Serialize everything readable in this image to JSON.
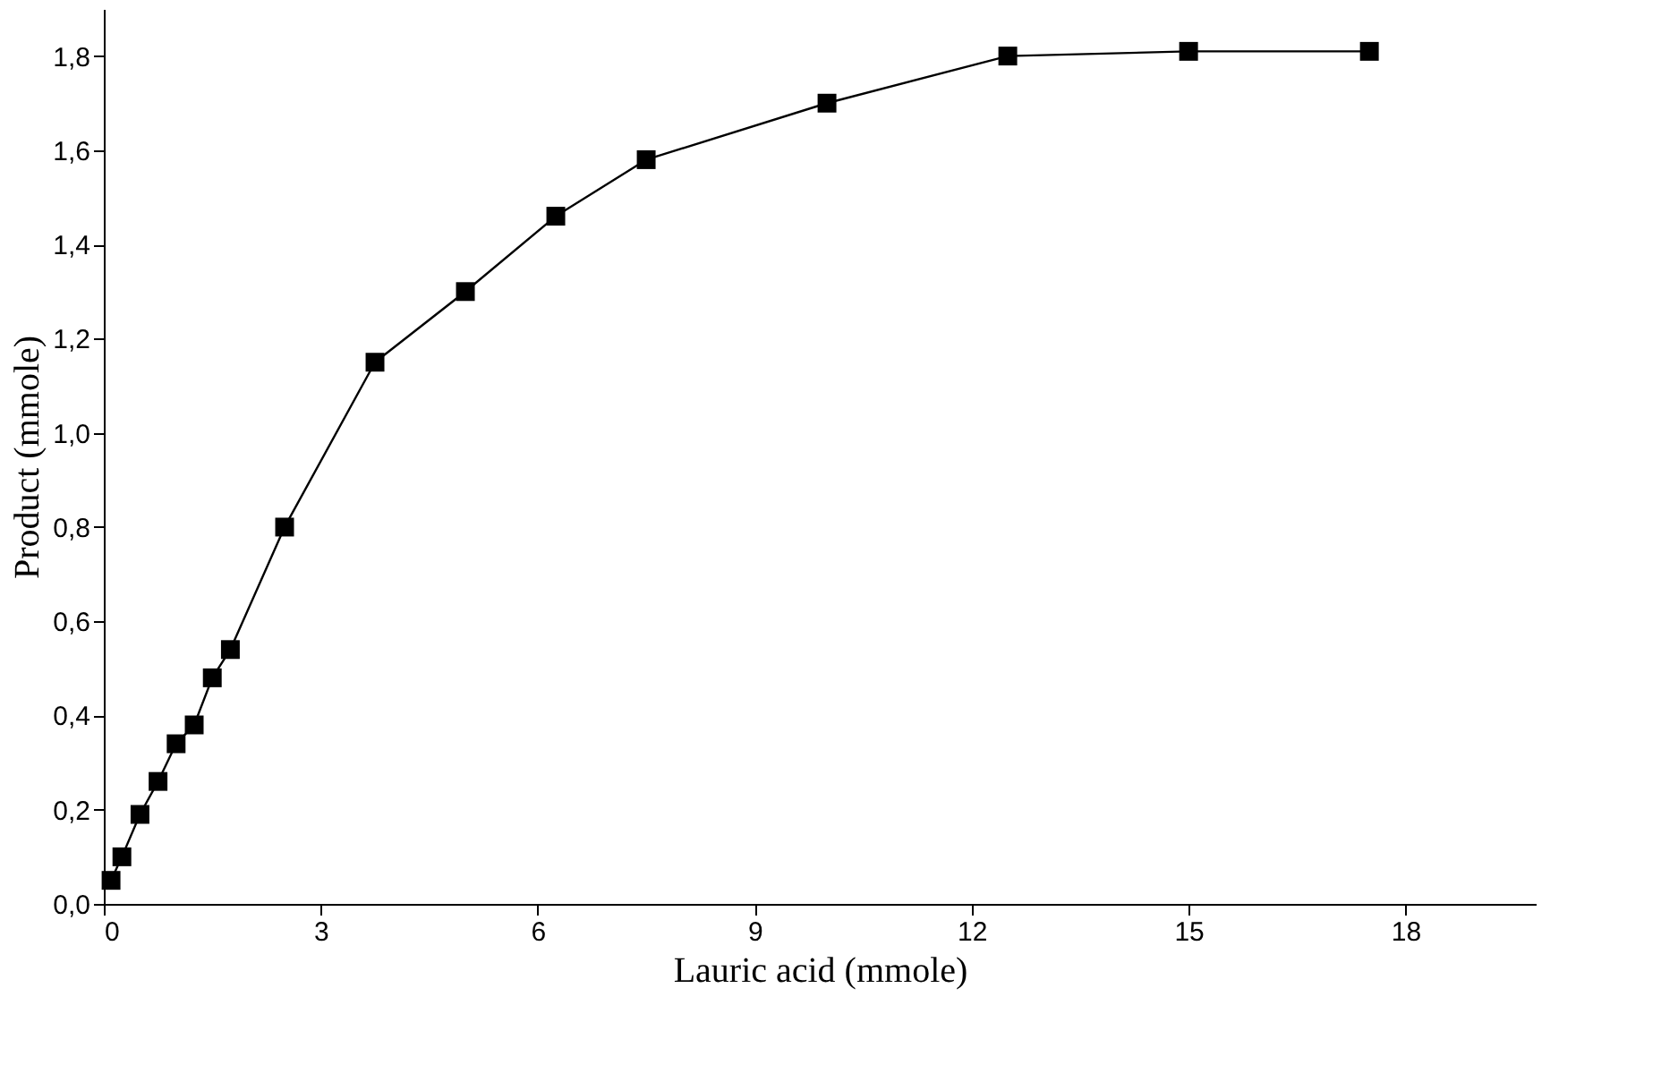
{
  "chart_data": {
    "type": "line",
    "xlabel": "Lauric acid (mmole)",
    "ylabel": "Product (mmole)",
    "x": [
      0.1,
      0.25,
      0.5,
      0.75,
      1.0,
      1.25,
      1.5,
      1.75,
      2.5,
      3.75,
      5.0,
      6.25,
      7.5,
      10.0,
      12.5,
      15.0,
      17.5
    ],
    "series": [
      {
        "color": "#000000",
        "values": [
          0.05,
          0.1,
          0.19,
          0.26,
          0.34,
          0.38,
          0.48,
          0.54,
          0.8,
          1.15,
          1.3,
          1.46,
          1.58,
          1.7,
          1.8,
          1.81,
          1.81
        ]
      }
    ],
    "xlim": [
      0,
      19.8
    ],
    "xticks": [
      0,
      3,
      6,
      9,
      12,
      15,
      18
    ],
    "ylim": [
      0,
      1.9
    ],
    "yticks": [
      {
        "value": 0,
        "label": "0,0"
      },
      {
        "value": 0.2,
        "label": "0,2"
      },
      {
        "value": 0.4,
        "label": "0,4"
      },
      {
        "value": 0.6,
        "label": "0,6"
      },
      {
        "value": 0.8,
        "label": "0,8"
      },
      {
        "value": 1.0,
        "label": "1,0"
      },
      {
        "value": 1.2,
        "label": "1,2"
      },
      {
        "value": 1.4,
        "label": "1,4"
      },
      {
        "value": 1.6,
        "label": "1,6"
      },
      {
        "value": 1.8,
        "label": "1,8"
      }
    ],
    "marker": "square",
    "line_style": "solid",
    "grid": false
  }
}
